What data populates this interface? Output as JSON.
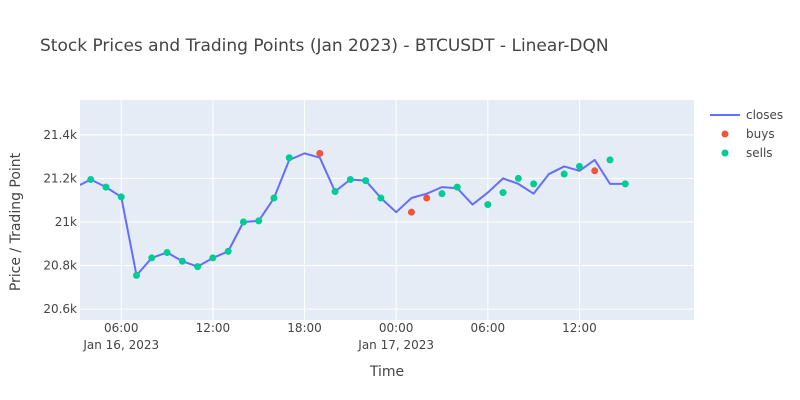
{
  "chart_data": {
    "type": "line",
    "title": "Stock Prices and Trading Points (Jan 2023) - BTCUSDT - Linear-DQN",
    "xlabel": "Time",
    "ylabel": "Price / Trading Point",
    "ylim": [
      20550,
      21560
    ],
    "xlim_hours_from_jan16_midnight": [
      3.3,
      43.5
    ],
    "grid": true,
    "legend_placement": "top-right outside",
    "y_ticks": [
      {
        "value": 20600,
        "label": "20.6k"
      },
      {
        "value": 20800,
        "label": "20.8k"
      },
      {
        "value": 21000,
        "label": "21k"
      },
      {
        "value": 21200,
        "label": "21.2k"
      },
      {
        "value": 21400,
        "label": "21.4k"
      }
    ],
    "x_ticks": [
      {
        "value": 6,
        "label": "06:00",
        "sublabel": "Jan 16, 2023"
      },
      {
        "value": 12,
        "label": "12:00",
        "sublabel": ""
      },
      {
        "value": 18,
        "label": "18:00",
        "sublabel": ""
      },
      {
        "value": 24,
        "label": "00:00",
        "sublabel": "Jan 17, 2023"
      },
      {
        "value": 30,
        "label": "06:00",
        "sublabel": ""
      },
      {
        "value": 36,
        "label": "12:00",
        "sublabel": ""
      }
    ],
    "series": [
      {
        "name": "closes",
        "mode": "line",
        "color": "#636efa",
        "x": [
          3.3,
          4,
          5,
          6,
          7,
          8,
          9,
          10,
          11,
          12,
          13,
          14,
          15,
          16,
          17,
          18,
          19,
          20,
          21,
          22,
          23,
          24,
          25,
          26,
          27,
          28,
          29,
          30,
          31,
          32,
          33,
          34,
          35,
          36,
          37,
          38,
          39
        ],
        "values": [
          21170,
          21195,
          21160,
          21115,
          20755,
          20835,
          20860,
          20820,
          20795,
          20835,
          20865,
          21000,
          21005,
          21110,
          21285,
          21315,
          21295,
          21140,
          21195,
          21190,
          21110,
          21045,
          21110,
          21130,
          21160,
          21155,
          21080,
          21135,
          21200,
          21175,
          21130,
          21220,
          21255,
          21235,
          21285,
          21175,
          21175
        ]
      },
      {
        "name": "buys",
        "mode": "markers",
        "color": "#ef553b",
        "x": [
          19,
          25,
          26,
          37
        ],
        "values": [
          21315,
          21045,
          21110,
          21235
        ]
      },
      {
        "name": "sells",
        "mode": "markers",
        "color": "#00cc96",
        "x": [
          4,
          5,
          6,
          7,
          8,
          9,
          10,
          11,
          12,
          13,
          14,
          15,
          16,
          17,
          20,
          21,
          22,
          23,
          27,
          28,
          30,
          31,
          32,
          33,
          35,
          36,
          38,
          39
        ],
        "values": [
          21195,
          21160,
          21115,
          20755,
          20835,
          20860,
          20820,
          20795,
          20835,
          20865,
          21000,
          21005,
          21110,
          21295,
          21140,
          21195,
          21190,
          21110,
          21130,
          21160,
          21080,
          21135,
          21200,
          21175,
          21220,
          21255,
          21285,
          21175
        ]
      }
    ],
    "colors": {
      "plot_bg": "#e5ecf6",
      "grid": "#ffffff",
      "text": "#444444"
    }
  }
}
